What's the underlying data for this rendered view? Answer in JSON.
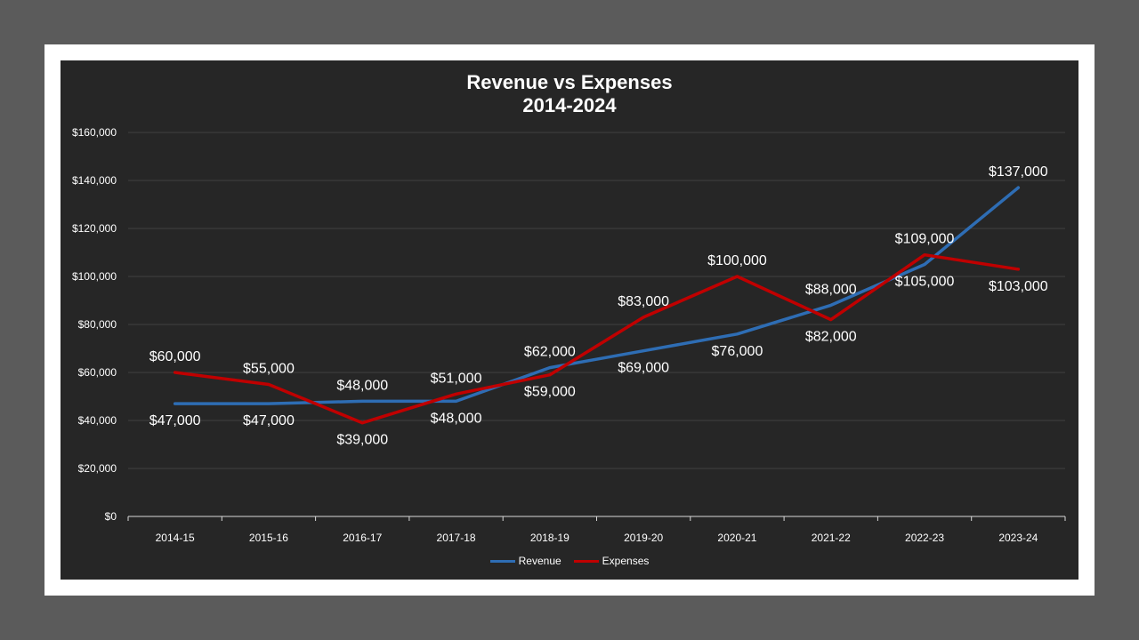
{
  "chart_data": {
    "type": "line",
    "title": "Revenue vs Expenses",
    "subtitle": "2014-2024",
    "xlabel": "",
    "ylabel": "",
    "categories": [
      "2014-15",
      "2015-16",
      "2016-17",
      "2017-18",
      "2018-19",
      "2019-20",
      "2020-21",
      "2021-22",
      "2022-23",
      "2023-24"
    ],
    "ylim": [
      0,
      160000
    ],
    "yticks": [
      0,
      20000,
      40000,
      60000,
      80000,
      100000,
      120000,
      140000,
      160000
    ],
    "ytick_labels": [
      "$0",
      "$20,000",
      "$40,000",
      "$60,000",
      "$80,000",
      "$100,000",
      "$120,000",
      "$140,000",
      "$160,000"
    ],
    "grid": true,
    "legend_position": "bottom",
    "series": [
      {
        "name": "Revenue",
        "color": "#2e6db4",
        "values": [
          47000,
          47000,
          48000,
          48000,
          62000,
          69000,
          76000,
          88000,
          105000,
          137000
        ],
        "labels": [
          "$47,000",
          "$47,000",
          "",
          "$48,000",
          "$62,000",
          "$69,000",
          "$76,000",
          "$88,000",
          "$105,000",
          "$137,000"
        ],
        "label_pos": [
          "below",
          "below",
          "",
          "below",
          "above",
          "below",
          "below",
          "above",
          "below",
          "above"
        ]
      },
      {
        "name": "Expenses",
        "color": "#c00000",
        "values": [
          60000,
          55000,
          39000,
          51000,
          59000,
          83000,
          100000,
          82000,
          109000,
          103000
        ],
        "labels": [
          "$60,000",
          "$55,000",
          "$39,000",
          "$51,000",
          "$59,000",
          "$83,000",
          "$100,000",
          "$82,000",
          "$109,000",
          "$103,000"
        ],
        "label_pos": [
          "above",
          "above",
          "below",
          "above",
          "below",
          "above",
          "above",
          "below",
          "above",
          "below"
        ]
      }
    ],
    "extra_labels": [
      {
        "text": "$48,000",
        "category_index": 2,
        "value": 48000,
        "pos": "above"
      }
    ]
  }
}
